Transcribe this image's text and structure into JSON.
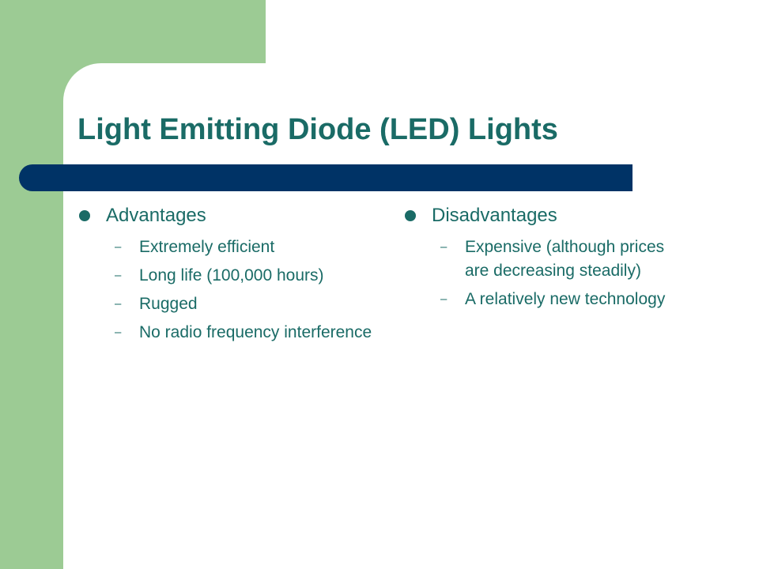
{
  "slide": {
    "title": "Light Emitting Diode (LED) Lights",
    "colors": {
      "green_frame": "#9ccb94",
      "navy_bar": "#003366",
      "text": "#1a6b66"
    },
    "columns": [
      {
        "heading": "Advantages",
        "items": [
          "Extremely efficient",
          "Long life (100,000 hours)",
          "Rugged",
          "No radio frequency interference"
        ]
      },
      {
        "heading": "Disadvantages",
        "items": [
          "Expensive (although prices are decreasing steadily)",
          "A relatively new technology"
        ]
      }
    ],
    "sub_bullet_marker": "–"
  }
}
